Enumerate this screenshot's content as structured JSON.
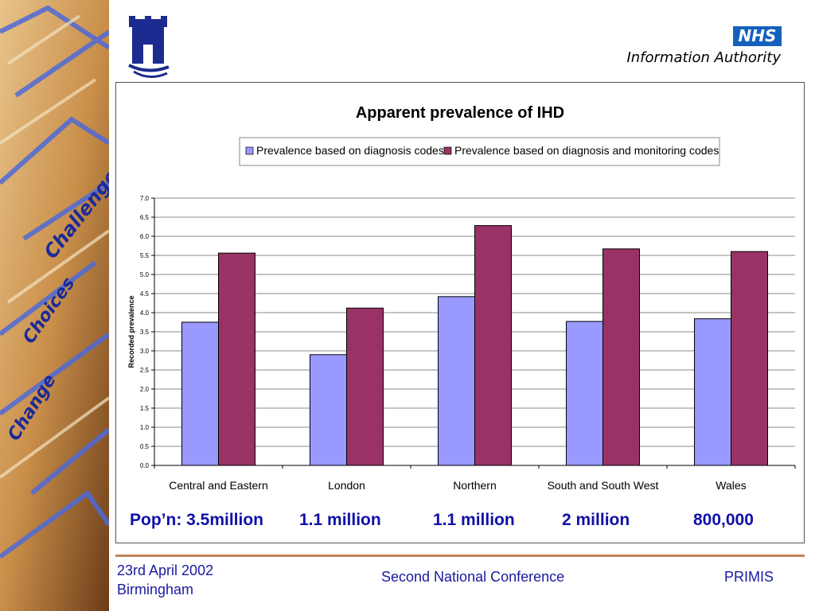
{
  "header": {
    "nhs_badge": "NHS",
    "org_name": "Information Authority"
  },
  "side_words": [
    "Challenge",
    "Choices",
    "Change"
  ],
  "chart_data": {
    "type": "bar",
    "title": "Apparent prevalence of IHD",
    "ylabel": "Recorded prevalence",
    "xlabel": "",
    "ylim": [
      0,
      7
    ],
    "ytick_step": 0.5,
    "grid": true,
    "legend_position": "top",
    "categories": [
      "Central and Eastern",
      "London",
      "Northern",
      "South and South West",
      "Wales"
    ],
    "series": [
      {
        "name": "Prevalence based on diagnosis codes",
        "color": "#9999ff",
        "values": [
          3.75,
          2.9,
          4.42,
          3.77,
          3.84
        ]
      },
      {
        "name": "Prevalence based on diagnosis and monitoring codes",
        "color": "#993366",
        "values": [
          5.56,
          4.12,
          6.28,
          5.67,
          5.6
        ]
      }
    ]
  },
  "population": [
    "Pop’n: 3.5million",
    "1.1 million",
    "1.1 million",
    "2 million",
    "800,000"
  ],
  "footer": {
    "date": "23rd April 2002",
    "place": "Birmingham",
    "conference": "Second National Conference",
    "brand": "PRIMIS"
  }
}
